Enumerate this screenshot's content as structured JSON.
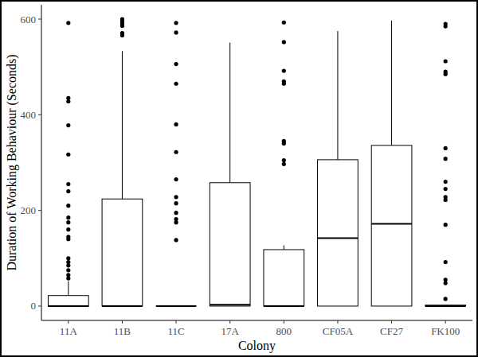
{
  "chart_data": {
    "type": "box",
    "x_label": "Colony",
    "y_label": "Duration of Working Behaviour (Seconds)",
    "categories": [
      "11A",
      "11B",
      "11C",
      "17A",
      "800",
      "CF05A",
      "CF27",
      "FK100"
    ],
    "boxes": [
      {
        "whisker_low": 0,
        "q1": 0,
        "median": 0,
        "q3": 22,
        "whisker_high": 52,
        "outliers": [
          592,
          435,
          428,
          378,
          317,
          255,
          240,
          210,
          185,
          175,
          160,
          145,
          140,
          100,
          92,
          85,
          75,
          65,
          58
        ]
      },
      {
        "whisker_low": 0,
        "q1": 0,
        "median": 0,
        "q3": 224,
        "whisker_high": 533,
        "outliers": [
          600,
          596,
          591,
          586,
          571,
          566
        ]
      },
      {
        "whisker_low": 0,
        "q1": 0,
        "median": 0,
        "q3": 0,
        "whisker_high": 0,
        "outliers": [
          592,
          572,
          506,
          465,
          380,
          322,
          265,
          228,
          215,
          195,
          182,
          175,
          138
        ]
      },
      {
        "whisker_low": 0,
        "q1": 0,
        "median": 3,
        "q3": 258,
        "whisker_high": 551,
        "outliers": []
      },
      {
        "whisker_low": 0,
        "q1": 0,
        "median": 0,
        "q3": 118,
        "whisker_high": 127,
        "outliers": [
          593,
          552,
          492,
          470,
          465,
          345,
          340,
          305,
          297
        ]
      },
      {
        "whisker_low": 0,
        "q1": 0,
        "median": 142,
        "q3": 306,
        "whisker_high": 575,
        "outliers": []
      },
      {
        "whisker_low": 0,
        "q1": 0,
        "median": 172,
        "q3": 336,
        "whisker_high": 597,
        "outliers": []
      },
      {
        "whisker_low": 0,
        "q1": 0,
        "median": 0,
        "q3": 2,
        "whisker_high": 2,
        "outliers": [
          590,
          585,
          512,
          490,
          485,
          330,
          308,
          260,
          245,
          228,
          222,
          170,
          92,
          55,
          48,
          15
        ]
      }
    ],
    "color": "#000000",
    "ylim": [
      -30,
      630
    ],
    "yticks": [
      0,
      200,
      400,
      600
    ],
    "grid": false
  }
}
